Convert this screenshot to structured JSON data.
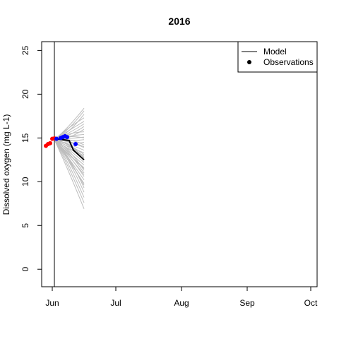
{
  "chart_data": {
    "type": "line",
    "title": "2016",
    "xlabel": "",
    "ylabel": "Dissolved oxygen (mg L-1)",
    "x_axis": {
      "ticks": [
        {
          "label": "Jun",
          "date": "2016-06-01"
        },
        {
          "label": "Jul",
          "date": "2016-07-01"
        },
        {
          "label": "Aug",
          "date": "2016-08-01"
        },
        {
          "label": "Sep",
          "date": "2016-09-01"
        },
        {
          "label": "Oct",
          "date": "2016-10-01"
        }
      ],
      "xlim": [
        "2016-05-27",
        "2016-10-04"
      ]
    },
    "y_axis": {
      "ticks": [
        0,
        5,
        10,
        15,
        20,
        25
      ],
      "ylim": [
        -2,
        26
      ]
    },
    "vline_date": "2016-06-02",
    "legend": {
      "position": "top-right",
      "entries": [
        {
          "label": "Model",
          "kind": "line"
        },
        {
          "label": "Observations",
          "kind": "point"
        }
      ]
    },
    "grid": false,
    "colors": {
      "model": "#000000",
      "ensemble": "#bdbdbd",
      "obs_pre": "#ff0000",
      "obs_post": "#0000ff"
    },
    "series": [
      {
        "name": "Model",
        "color": "#000000",
        "points": [
          {
            "x": "2016-06-02",
            "y": 14.8
          },
          {
            "x": "2016-06-03",
            "y": 14.9
          },
          {
            "x": "2016-06-06",
            "y": 14.8
          },
          {
            "x": "2016-06-09",
            "y": 14.7
          },
          {
            "x": "2016-06-11",
            "y": 13.6
          },
          {
            "x": "2016-06-16",
            "y": 12.5
          }
        ]
      },
      {
        "name": "Observations",
        "points": [
          {
            "x": "2016-05-29",
            "y": 14.1,
            "color": "#ff0000"
          },
          {
            "x": "2016-05-30",
            "y": 14.3,
            "color": "#ff0000"
          },
          {
            "x": "2016-05-31",
            "y": 14.4,
            "color": "#ff0000"
          },
          {
            "x": "2016-06-01",
            "y": 14.9,
            "color": "#ff0000"
          },
          {
            "x": "2016-06-02",
            "y": 14.95,
            "color": "#ff0000"
          },
          {
            "x": "2016-06-03",
            "y": 14.9,
            "color": "#0000ff"
          },
          {
            "x": "2016-06-05",
            "y": 15.0,
            "color": "#0000ff"
          },
          {
            "x": "2016-06-06",
            "y": 15.1,
            "color": "#0000ff"
          },
          {
            "x": "2016-06-07",
            "y": 15.2,
            "color": "#0000ff"
          },
          {
            "x": "2016-06-08",
            "y": 15.1,
            "color": "#0000ff"
          },
          {
            "x": "2016-06-12",
            "y": 14.3,
            "color": "#0000ff"
          }
        ]
      }
    ],
    "ensemble": {
      "color": "#bdbdbd",
      "start": {
        "x": "2016-06-02",
        "y": 14.8
      },
      "end_x": "2016-06-16",
      "end_values": [
        6.9,
        7.6,
        8.2,
        8.8,
        9.3,
        9.8,
        10.2,
        10.6,
        11.0,
        11.3,
        11.6,
        11.9,
        12.2,
        12.5,
        12.8,
        13.0,
        13.3,
        13.6,
        13.9,
        14.2,
        14.5,
        14.8,
        15.1,
        15.4,
        15.7,
        16.0,
        16.3,
        16.6,
        16.9,
        17.3,
        17.7,
        18.1,
        18.4,
        13.1,
        12.7,
        11.5,
        10.8,
        9.6,
        14.0,
        15.0
      ]
    }
  }
}
